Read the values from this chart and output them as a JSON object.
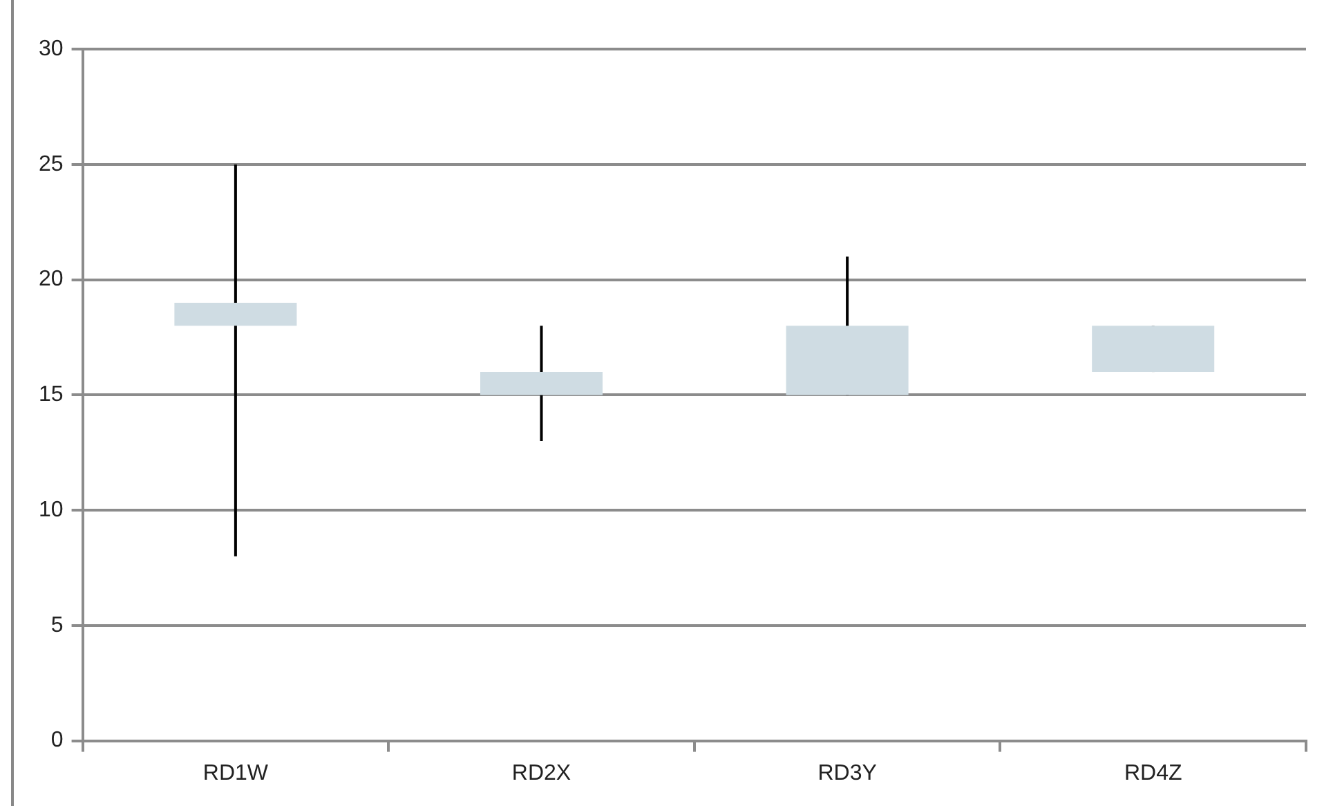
{
  "chart_data": {
    "type": "candlestick",
    "categories": [
      "RD1W",
      "RD2X",
      "RD3Y",
      "RD4Z"
    ],
    "ohlc": [
      [
        18,
        25,
        8,
        19
      ],
      [
        15,
        18,
        13,
        16
      ],
      [
        15,
        21,
        15,
        18
      ],
      [
        16,
        18,
        16,
        18
      ]
    ],
    "color": "#cfdce3",
    "ylim": [
      0,
      30
    ],
    "yticks": [
      0,
      5,
      10,
      15,
      20,
      25,
      30
    ],
    "grid": "y"
  }
}
